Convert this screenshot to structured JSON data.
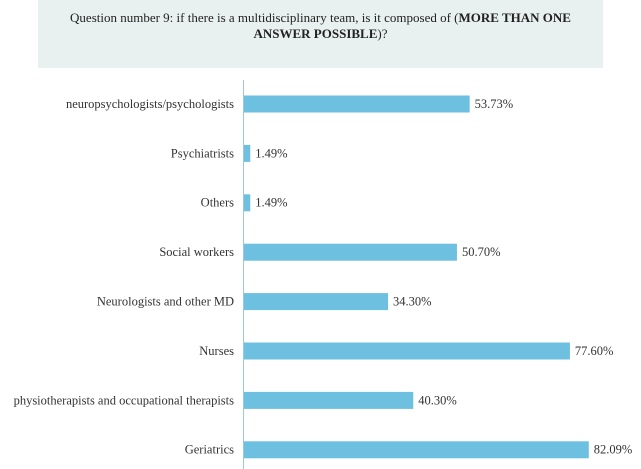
{
  "chart_data": {
    "type": "bar",
    "title_parts": [
      "Question number 9: if there is a multidisciplinary team, is it composed of (",
      "MORE THAN ONE ANSWER POSSIBLE",
      ")?"
    ],
    "categories": [
      "neuropsychologists/psychologists",
      "Psychiatrists",
      "Others",
      "Social workers",
      "Neurologists and other MD",
      "Nurses",
      "physiotherapists and occupational therapists",
      "Geriatrics"
    ],
    "values": [
      53.73,
      1.49,
      1.49,
      50.7,
      34.3,
      77.6,
      40.3,
      82.09
    ],
    "value_labels": [
      "53.73%",
      "1.49%",
      "1.49%",
      "50.70%",
      "34.30%",
      "77.60%",
      "40.30%",
      "82.09%"
    ],
    "color": "#6dc0df"
  }
}
